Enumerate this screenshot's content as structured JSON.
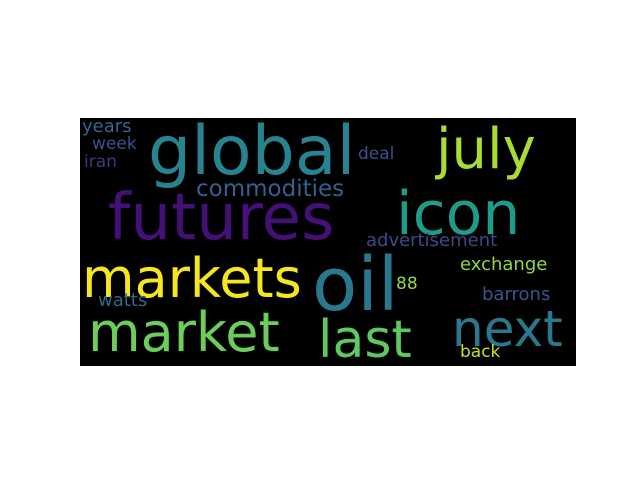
{
  "words": [
    {
      "text": "global",
      "weight": 0.86,
      "color": "#26838f"
    },
    {
      "text": "july",
      "weight": 0.74,
      "color": "#a8db34"
    },
    {
      "text": "futures",
      "weight": 0.82,
      "color": "#440f76"
    },
    {
      "text": "icon",
      "weight": 0.78,
      "color": "#1e9c89"
    },
    {
      "text": "commodities",
      "weight": 0.34,
      "color": "#35608d"
    },
    {
      "text": "deal",
      "weight": 0.22,
      "color": "#3b518b"
    },
    {
      "text": "markets",
      "weight": 0.76,
      "color": "#f5e61e"
    },
    {
      "text": "oil",
      "weight": 1.0,
      "color": "#2a788e"
    },
    {
      "text": "market",
      "weight": 0.8,
      "color": "#6ccd5a"
    },
    {
      "text": "last",
      "weight": 0.72,
      "color": "#5ec962"
    },
    {
      "text": "next",
      "weight": 0.74,
      "color": "#2a788e"
    },
    {
      "text": "advertisement",
      "weight": 0.3,
      "color": "#3f4889"
    },
    {
      "text": "exchange",
      "weight": 0.28,
      "color": "#8fd744"
    },
    {
      "text": "88",
      "weight": 0.22,
      "color": "#95d840"
    },
    {
      "text": "barrons",
      "weight": 0.26,
      "color": "#3a548c"
    },
    {
      "text": "years",
      "weight": 0.26,
      "color": "#31688e"
    },
    {
      "text": "week",
      "weight": 0.24,
      "color": "#3b528b"
    },
    {
      "text": "iran",
      "weight": 0.22,
      "color": "#46327e"
    },
    {
      "text": "watts",
      "weight": 0.24,
      "color": "#31688e"
    },
    {
      "text": "back",
      "weight": 0.24,
      "color": "#c8e020"
    }
  ]
}
